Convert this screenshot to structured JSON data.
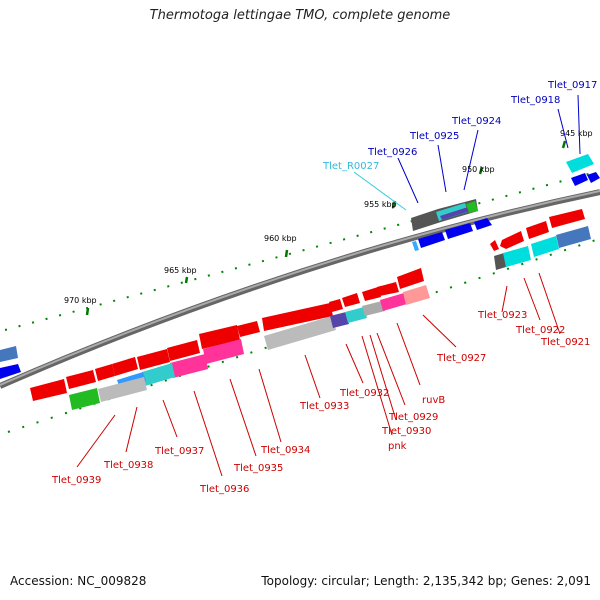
{
  "title": "Thermotoga lettingae TMO, complete genome",
  "footer": {
    "accession": "Accession: NC_009828",
    "topology": "Topology: circular; Length: 2,135,342 bp; Genes: 2,091"
  },
  "scale_labels": [
    "945 kbp",
    "950 kbp",
    "955 kbp",
    "960 kbp",
    "965 kbp",
    "970 kbp"
  ],
  "gene_labels": [
    "Tlet_0917",
    "Tlet_0918",
    "Tlet_0924",
    "Tlet_0925",
    "Tlet_0926",
    "Tlet_R0027",
    "Tlet_0923",
    "Tlet_0922",
    "Tlet_0921",
    "Tlet_0927",
    "ruvB",
    "Tlet_0929",
    "Tlet_0930",
    "pnk",
    "Tlet_0932",
    "Tlet_0933",
    "Tlet_0934",
    "Tlet_0935",
    "Tlet_0936",
    "Tlet_0937",
    "Tlet_0938",
    "Tlet_0939"
  ],
  "colors": {
    "forward_strand": "#0000dd",
    "reverse_strand": "#ee0000",
    "rna_gene": "#33ccdd",
    "backbone": "#888888",
    "ticks": "#007700"
  }
}
